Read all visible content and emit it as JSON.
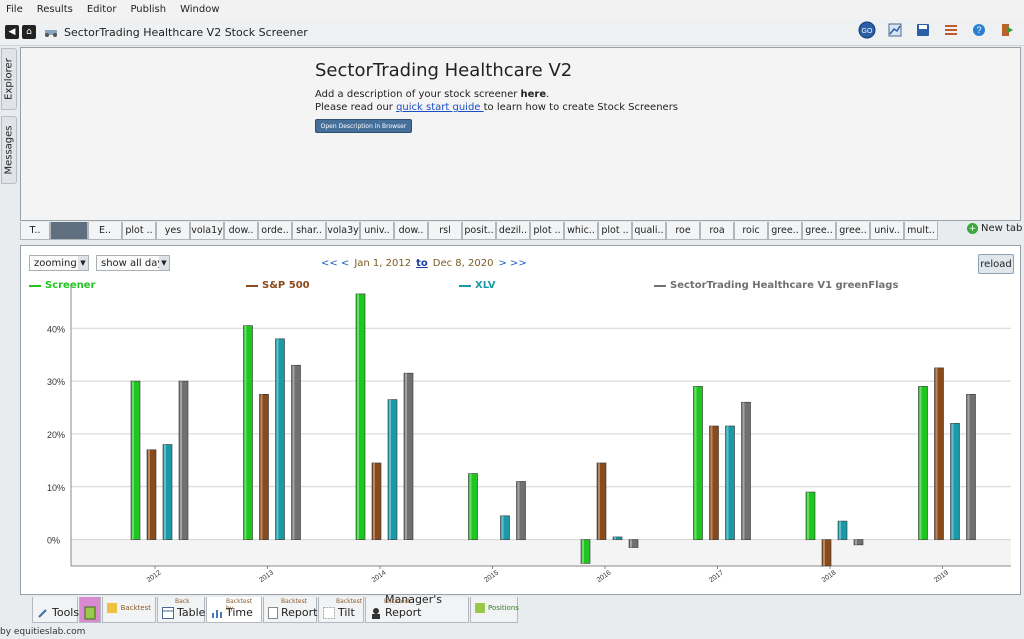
{
  "menu": [
    "File",
    "Results",
    "Editor",
    "Publish",
    "Window"
  ],
  "app_title": "SectorTrading Healthcare V2 Stock Screener",
  "sidebar": {
    "explorer": "Explorer",
    "messages": "Messages"
  },
  "description": {
    "title": "SectorTrading Healthcare V2",
    "line1_prefix": "Add a description of your stock screener ",
    "line1_bold": "here",
    "line1_suffix": ".",
    "line2_prefix": "Please read our ",
    "line2_link": "quick start guide ",
    "line2_suffix": "to learn how to create Stock Screeners",
    "button": "Open Description in Browser"
  },
  "tabs": [
    "T..",
    "",
    "E..",
    "plot ..",
    "yes",
    "vola1y",
    "dow..",
    "orde..",
    "shar..",
    "vola3y",
    "univ..",
    "dow..",
    "rsl",
    "posit..",
    "dezil..",
    "plot ..",
    "whic..",
    "plot ..",
    "quali..",
    "roe",
    "roa",
    "roic",
    "gree..",
    "gree..",
    "gree..",
    "univ..",
    "mult.."
  ],
  "new_tab": "New tab",
  "controls": {
    "zoom": "zooming",
    "days": "show all days",
    "prev": "<< <",
    "start": "Jan 1, 2012",
    "to": "to",
    "end": "Dec 8, 2020",
    "next": "> >>",
    "reload": "reload"
  },
  "colors": {
    "screener": "#1fc61f",
    "sp500": "#8a4a1a",
    "xlv": "#1a9aa8",
    "v1": "#707070"
  },
  "chart_data": {
    "type": "bar",
    "categories": [
      "2012",
      "2013",
      "2014",
      "2015",
      "2016",
      "2017",
      "2018",
      "2019"
    ],
    "series": [
      {
        "name": "Screener",
        "values": [
          30,
          40.5,
          46.5,
          12.5,
          -4.5,
          29,
          9,
          29
        ]
      },
      {
        "name": "S&P 500",
        "values": [
          17,
          27.5,
          14.5,
          null,
          14.5,
          21.5,
          -5,
          32.5
        ]
      },
      {
        "name": "XLV",
        "values": [
          18,
          38,
          26.5,
          4.5,
          0.5,
          21.5,
          3.5,
          22
        ]
      },
      {
        "name": "SectorTrading Healthcare V1 greenFlags",
        "values": [
          30,
          33,
          31.5,
          11,
          -1.5,
          26,
          -1,
          27.5
        ]
      }
    ],
    "ytick_labels": [
      "0%",
      "10%",
      "20%",
      "30%",
      "40%"
    ],
    "ylim": [
      -5,
      48
    ],
    "grid": true,
    "legend": "top"
  },
  "bottom_tabs": [
    {
      "small": "",
      "label": "Tools"
    },
    {
      "small": "",
      "label": ""
    },
    {
      "small": "",
      "label": "Backtest"
    },
    {
      "small": "Back",
      "label": "Table"
    },
    {
      "small": "Backtest by",
      "label": "Time"
    },
    {
      "small": "Backtest",
      "label": "Report"
    },
    {
      "small": "Backtest",
      "label": "Tilt"
    },
    {
      "small": "Backtest",
      "label": "Manager's Report"
    },
    {
      "small": "",
      "label": "Positions"
    }
  ],
  "credit": "by equitieslab.com"
}
